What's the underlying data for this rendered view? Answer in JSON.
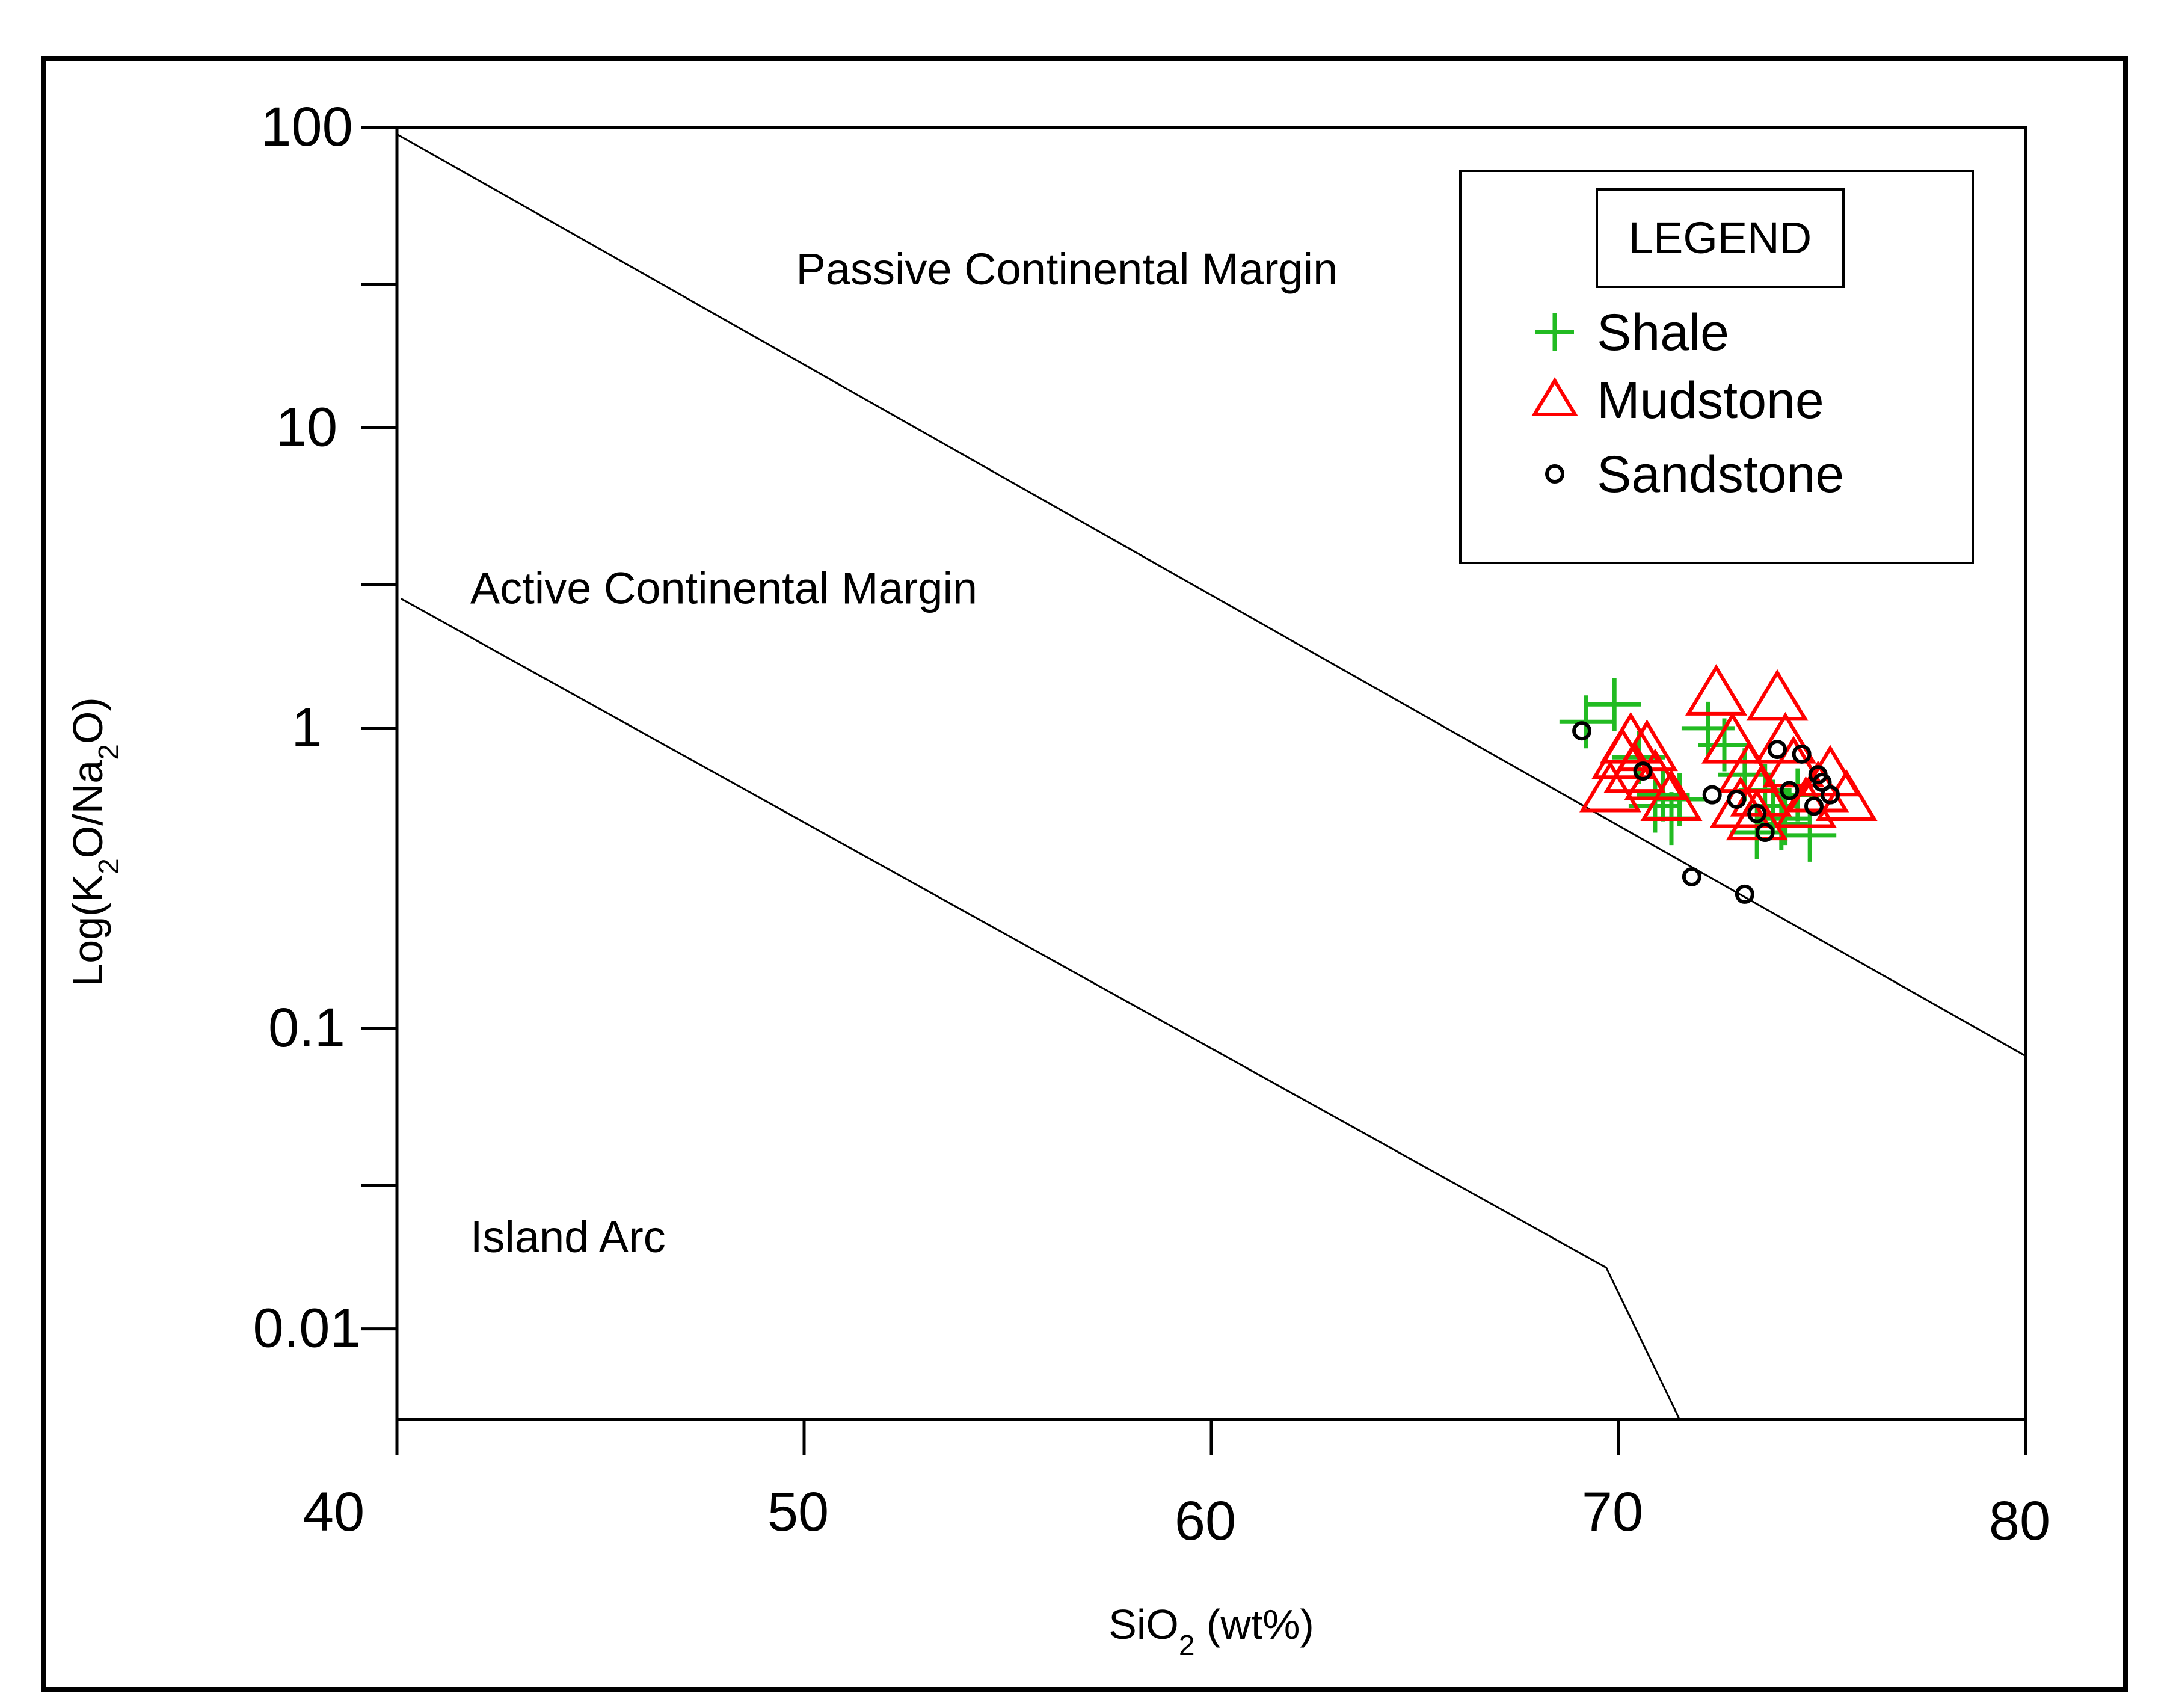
{
  "chart_data": {
    "type": "scatter",
    "title": "",
    "xlabel": {
      "prefix": "SiO",
      "sub": "2",
      "suffix": " (wt%)"
    },
    "ylabel": {
      "parts": [
        {
          "t": "Log(K",
          "sub": false
        },
        {
          "t": "2",
          "sub": true
        },
        {
          "t": "O/Na",
          "sub": false
        },
        {
          "t": "2",
          "sub": true
        },
        {
          "t": "O)",
          "sub": false
        }
      ]
    },
    "xlim": [
      40,
      80
    ],
    "ylim_log": [
      0.005,
      100
    ],
    "x_ticks": [
      40,
      50,
      60,
      70,
      80
    ],
    "x_tick_labels": [
      "40",
      "50",
      "60",
      "70",
      "80"
    ],
    "y_major_ticks": [
      100,
      10,
      1,
      0.1,
      0.01
    ],
    "y_tick_labels": [
      "100",
      "10",
      "1",
      "0.1",
      "0.01"
    ],
    "y_minor_ticks": [
      30,
      3,
      0.03
    ],
    "boundaries": [
      {
        "name": "passive-active-boundary",
        "points": [
          [
            40,
            95
          ],
          [
            80,
            0.081
          ]
        ]
      },
      {
        "name": "active-island-arc-boundary",
        "points": [
          [
            40.1,
            2.7
          ],
          [
            69.7,
            0.016
          ],
          [
            71.5,
            0.005
          ]
        ]
      }
    ],
    "regions": [
      {
        "name": "passive-continental-margin-label",
        "text": "Passive Continental Margin",
        "at": [
          49.8,
          30
        ]
      },
      {
        "name": "active-continental-margin-label",
        "text": "Active Continental Margin",
        "at": [
          41.8,
          2.6
        ]
      },
      {
        "name": "island-arc-label",
        "text": "Island Arc",
        "at": [
          41.8,
          0.018
        ]
      }
    ],
    "legend": {
      "title": "LEGEND",
      "position": "top-right",
      "entries": [
        {
          "label": "Shale",
          "marker": "plus",
          "color": "#22bb22"
        },
        {
          "label": "Mudstone",
          "marker": "triangle",
          "color": "#ff0000"
        },
        {
          "label": "Sandstone",
          "marker": "circle",
          "color": "#000000"
        }
      ]
    },
    "series": [
      {
        "name": "Shale",
        "marker": "plus",
        "color": "#22bb22",
        "x": [
          69.2,
          69.9,
          70.5,
          70.9,
          71.1,
          71.3,
          71.5,
          72.2,
          72.6,
          73.1,
          73.4,
          73.8,
          74.1,
          74.4,
          74.7,
          73.6,
          74.0
        ],
        "y": [
          1.05,
          1.2,
          0.8,
          0.55,
          0.6,
          0.5,
          0.58,
          1.0,
          0.88,
          0.7,
          0.45,
          0.55,
          0.5,
          0.6,
          0.44,
          0.62,
          0.48
        ]
      },
      {
        "name": "Mudstone",
        "marker": "triangle",
        "color": "#ff0000",
        "x": [
          69.8,
          70.1,
          70.4,
          70.7,
          70.9,
          71.3,
          72.4,
          72.8,
          73.2,
          73.5,
          73.9,
          74.1,
          74.3,
          74.6,
          75.2,
          75.6,
          73.0,
          73.4,
          74.9,
          70.3
        ],
        "y": [
          0.62,
          0.8,
          0.72,
          0.85,
          0.68,
          0.58,
          1.3,
          0.9,
          0.72,
          0.6,
          1.25,
          0.9,
          0.75,
          0.55,
          0.7,
          0.58,
          0.55,
          0.5,
          0.62,
          0.9
        ]
      },
      {
        "name": "Sandstone",
        "marker": "circle",
        "color": "#000000",
        "x": [
          69.1,
          70.6,
          71.8,
          72.3,
          72.9,
          73.1,
          73.4,
          73.9,
          74.2,
          74.5,
          74.8,
          75.0,
          75.2,
          74.9,
          73.6
        ],
        "y": [
          0.98,
          0.72,
          0.32,
          0.6,
          0.58,
          0.28,
          0.52,
          0.85,
          0.62,
          0.82,
          0.55,
          0.66,
          0.6,
          0.7,
          0.45
        ]
      }
    ]
  }
}
